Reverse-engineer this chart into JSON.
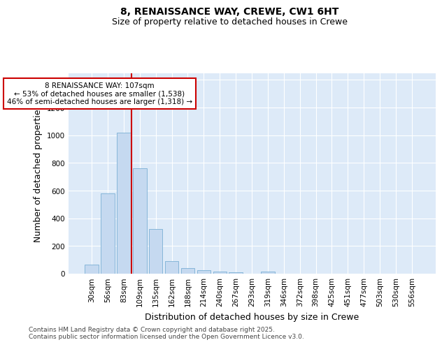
{
  "title_line1": "8, RENAISSANCE WAY, CREWE, CW1 6HT",
  "title_line2": "Size of property relative to detached houses in Crewe",
  "xlabel": "Distribution of detached houses by size in Crewe",
  "ylabel": "Number of detached properties",
  "categories": [
    "30sqm",
    "56sqm",
    "83sqm",
    "109sqm",
    "135sqm",
    "162sqm",
    "188sqm",
    "214sqm",
    "240sqm",
    "267sqm",
    "293sqm",
    "319sqm",
    "346sqm",
    "372sqm",
    "398sqm",
    "425sqm",
    "451sqm",
    "477sqm",
    "503sqm",
    "530sqm",
    "556sqm"
  ],
  "values": [
    65,
    580,
    1020,
    760,
    325,
    90,
    38,
    25,
    15,
    10,
    0,
    15,
    0,
    0,
    0,
    0,
    0,
    0,
    0,
    0,
    0
  ],
  "bar_color": "#c5d9f0",
  "bar_edge_color": "#7bafd4",
  "red_line_index": 3,
  "red_line_color": "#cc0000",
  "annotation_text": "8 RENAISSANCE WAY: 107sqm\n← 53% of detached houses are smaller (1,538)\n46% of semi-detached houses are larger (1,318) →",
  "annotation_box_color": "#cc0000",
  "annotation_fill_color": "#ffffff",
  "ylim": [
    0,
    1450
  ],
  "yticks": [
    0,
    200,
    400,
    600,
    800,
    1000,
    1200,
    1400
  ],
  "bg_color": "#ddeaf8",
  "grid_color": "#ffffff",
  "footer_text": "Contains HM Land Registry data © Crown copyright and database right 2025.\nContains public sector information licensed under the Open Government Licence v3.0.",
  "title_fontsize": 10,
  "subtitle_fontsize": 9,
  "axis_label_fontsize": 9,
  "tick_fontsize": 7.5,
  "annotation_fontsize": 7.5,
  "footer_fontsize": 6.5
}
